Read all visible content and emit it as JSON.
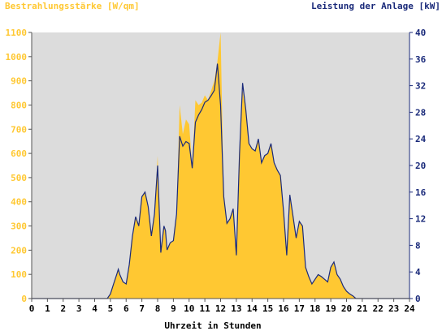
{
  "chart_data": {
    "type": "area",
    "title_left": "Bestrahlungsstärke [W/qm]",
    "title_right": "Leistung der Anlage [kW]",
    "xlabel": "Uhrzeit in Stunden",
    "xlim": [
      0,
      24
    ],
    "ylim_left": [
      0,
      1100
    ],
    "ylim_right": [
      0,
      40
    ],
    "x_ticks": [
      "0",
      "1",
      "2",
      "3",
      "4",
      "5",
      "6",
      "7",
      "8",
      "9",
      "10",
      "11",
      "12",
      "13",
      "14",
      "15",
      "16",
      "17",
      "18",
      "19",
      "20",
      "21",
      "22",
      "23",
      "24"
    ],
    "y_ticks_left": [
      "0",
      "100",
      "200",
      "300",
      "400",
      "500",
      "600",
      "700",
      "800",
      "900",
      "1000",
      "1100"
    ],
    "y_ticks_right": [
      "0",
      "4",
      "8",
      "12",
      "16",
      "20",
      "24",
      "28",
      "32",
      "36",
      "40"
    ],
    "grid": false,
    "colors": {
      "plot_bg": "#dcdcdc",
      "irradiance": "#ffc832",
      "power": "#1a2a7a"
    },
    "series": [
      {
        "name": "Bestrahlungsstärke [W/qm]",
        "axis": "left",
        "x": [
          0,
          4.8,
          5.0,
          5.2,
          5.4,
          5.5,
          5.6,
          5.8,
          6.0,
          6.2,
          6.4,
          6.6,
          6.8,
          7.0,
          7.2,
          7.4,
          7.6,
          7.8,
          8.0,
          8.2,
          8.4,
          8.5,
          8.6,
          8.8,
          9.0,
          9.2,
          9.4,
          9.6,
          9.8,
          10.0,
          10.2,
          10.4,
          10.6,
          10.8,
          11.0,
          11.2,
          11.4,
          11.6,
          11.8,
          12.0,
          12.2,
          12.4,
          12.6,
          12.8,
          13.0,
          13.2,
          13.4,
          13.6,
          13.8,
          14.0,
          14.2,
          14.4,
          14.6,
          14.8,
          15.0,
          15.2,
          15.4,
          15.6,
          15.8,
          16.0,
          16.2,
          16.4,
          16.6,
          16.8,
          17.0,
          17.2,
          17.4,
          17.6,
          17.8,
          18.0,
          18.2,
          18.4,
          18.6,
          18.8,
          19.0,
          19.2,
          19.4,
          19.6,
          19.8,
          20.0,
          20.2,
          20.4,
          20.6,
          20.8,
          21.0,
          24
        ],
        "y": [
          0,
          0,
          20,
          60,
          100,
          120,
          100,
          70,
          60,
          140,
          260,
          340,
          300,
          420,
          440,
          380,
          260,
          350,
          590,
          190,
          300,
          280,
          200,
          230,
          240,
          350,
          800,
          680,
          740,
          720,
          540,
          820,
          800,
          810,
          840,
          820,
          860,
          900,
          980,
          1100,
          420,
          310,
          330,
          370,
          180,
          600,
          860,
          780,
          640,
          620,
          610,
          660,
          560,
          590,
          600,
          640,
          560,
          530,
          510,
          360,
          180,
          430,
          340,
          250,
          320,
          300,
          130,
          90,
          60,
          80,
          100,
          90,
          80,
          70,
          130,
          150,
          100,
          80,
          50,
          30,
          20,
          10,
          0,
          0,
          0,
          0
        ]
      },
      {
        "name": "Leistung der Anlage [kW]",
        "axis": "right",
        "x": [
          0,
          4.8,
          5.0,
          5.2,
          5.4,
          5.5,
          5.6,
          5.8,
          6.0,
          6.2,
          6.4,
          6.6,
          6.8,
          7.0,
          7.2,
          7.4,
          7.6,
          7.8,
          8.0,
          8.2,
          8.4,
          8.5,
          8.6,
          8.8,
          9.0,
          9.2,
          9.4,
          9.6,
          9.8,
          10.0,
          10.2,
          10.4,
          10.6,
          10.8,
          11.0,
          11.2,
          11.4,
          11.6,
          11.8,
          12.0,
          12.2,
          12.4,
          12.6,
          12.8,
          13.0,
          13.2,
          13.4,
          13.6,
          13.8,
          14.0,
          14.2,
          14.4,
          14.6,
          14.8,
          15.0,
          15.2,
          15.4,
          15.6,
          15.8,
          16.0,
          16.2,
          16.4,
          16.6,
          16.8,
          17.0,
          17.2,
          17.4,
          17.6,
          17.8,
          18.0,
          18.2,
          18.4,
          18.6,
          18.8,
          19.0,
          19.2,
          19.4,
          19.6,
          19.8,
          20.0,
          20.2,
          20.4,
          20.6,
          20.8,
          21.0,
          24
        ],
        "y": [
          0,
          0,
          0.7,
          2.2,
          3.6,
          4.4,
          3.6,
          2.5,
          2.2,
          5.1,
          9.4,
          12.3,
          10.9,
          15.3,
          16.0,
          13.8,
          9.4,
          12.7,
          20.0,
          6.9,
          10.9,
          10.2,
          7.3,
          8.4,
          8.7,
          12.7,
          24.4,
          22.9,
          23.6,
          23.3,
          19.6,
          26.5,
          27.6,
          28.4,
          29.5,
          29.8,
          30.5,
          31.3,
          35.3,
          29.0,
          15.3,
          11.3,
          12.0,
          13.5,
          6.5,
          21.8,
          32.4,
          28.4,
          23.3,
          22.5,
          22.2,
          24.0,
          20.4,
          21.5,
          21.8,
          23.3,
          20.4,
          19.3,
          18.5,
          13.1,
          6.5,
          15.6,
          12.4,
          9.1,
          11.6,
          10.9,
          4.7,
          3.3,
          2.2,
          2.9,
          3.6,
          3.3,
          2.9,
          2.5,
          4.7,
          5.5,
          3.6,
          2.9,
          1.8,
          1.1,
          0.7,
          0.4,
          0,
          0,
          0,
          0
        ]
      }
    ]
  }
}
